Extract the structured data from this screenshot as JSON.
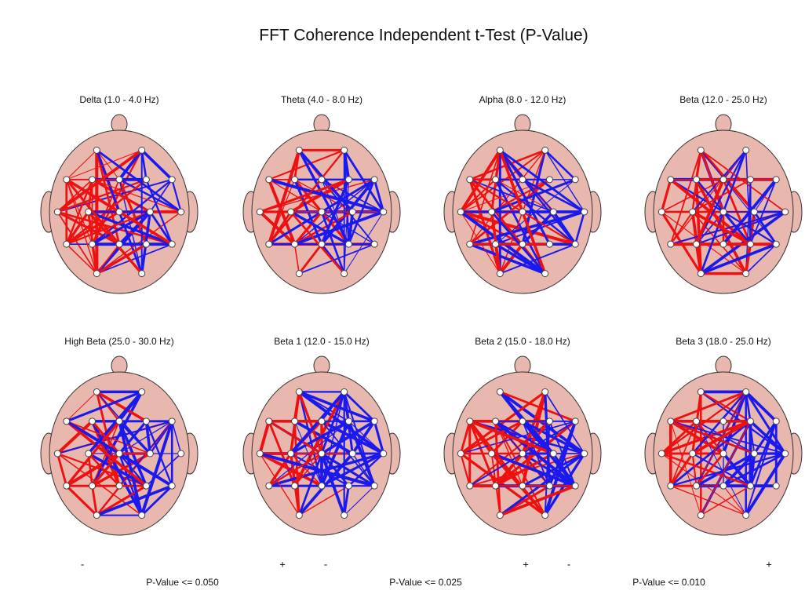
{
  "title": "FFT Coherence Independent t-Test  (P-Value)",
  "panels": [
    {
      "title": "Delta (1.0 - 4.0 Hz)"
    },
    {
      "title": "Theta (4.0 - 8.0 Hz)"
    },
    {
      "title": "Alpha (8.0 - 12.0 Hz)"
    },
    {
      "title": "Beta (12.0 - 25.0 Hz)"
    },
    {
      "title": "High Beta (25.0 - 30.0 Hz)"
    },
    {
      "title": "Beta 1 (12.0 - 15.0 Hz)"
    },
    {
      "title": "Beta 2 (15.0 - 18.0 Hz)"
    },
    {
      "title": "Beta 3 (18.0 - 25.0 Hz)"
    }
  ],
  "legends": [
    {
      "minus": "-",
      "plus": "+",
      "label": "P-Value <= 0.050"
    },
    {
      "minus": "-",
      "plus": "+",
      "label": "P-Value <= 0.025"
    },
    {
      "minus": "-",
      "plus": "+",
      "label": "P-Value <= 0.010"
    }
  ]
}
